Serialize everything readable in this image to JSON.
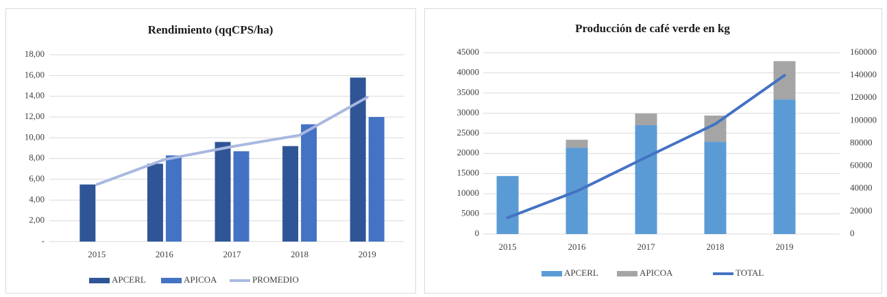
{
  "chart_data": [
    {
      "type": "bar",
      "title": "Rendimiento  (qqCPS/ha)",
      "categories": [
        "2015",
        "2016",
        "2017",
        "2018",
        "2019"
      ],
      "series": [
        {
          "name": "APCERL",
          "color": "#2f5597",
          "type": "bar",
          "values": [
            5.5,
            7.5,
            9.6,
            9.2,
            15.8
          ]
        },
        {
          "name": "APICOA",
          "color": "#4472c4",
          "type": "bar",
          "values": [
            null,
            8.3,
            8.7,
            11.3,
            12.0
          ]
        },
        {
          "name": "PROMEDIO",
          "color": "#a9b8e0",
          "type": "line",
          "values": [
            5.5,
            7.9,
            9.15,
            10.25,
            13.9
          ]
        }
      ],
      "ylim": [
        0,
        18
      ],
      "yticks": [
        {
          "value": 0,
          "label": "-"
        },
        {
          "value": 2,
          "label": "2,00"
        },
        {
          "value": 4,
          "label": "4,00"
        },
        {
          "value": 6,
          "label": "6,00"
        },
        {
          "value": 8,
          "label": "8,00"
        },
        {
          "value": 10,
          "label": "10,00"
        },
        {
          "value": 12,
          "label": "12,00"
        },
        {
          "value": 14,
          "label": "14,00"
        },
        {
          "value": 16,
          "label": "16,00"
        },
        {
          "value": 18,
          "label": "18,00"
        }
      ],
      "grid": true
    },
    {
      "type": "bar",
      "stacked": true,
      "title": "Producción de café verde en kg",
      "categories": [
        "2015",
        "2016",
        "2017",
        "2018",
        "2019"
      ],
      "series": [
        {
          "name": "APCERL",
          "color": "#5b9bd5",
          "type": "bar",
          "values": [
            14400,
            21400,
            27000,
            22900,
            33400
          ]
        },
        {
          "name": "APICOA",
          "color": "#a5a5a5",
          "type": "bar",
          "values": [
            0,
            2000,
            2900,
            6500,
            9500
          ]
        },
        {
          "name": "TOTAL",
          "color": "#4472c4",
          "type": "line",
          "axis": "y2",
          "values": [
            14400,
            37800,
            67700,
            97100,
            140000
          ]
        }
      ],
      "ylim": [
        0,
        45000
      ],
      "yticks": [
        0,
        5000,
        10000,
        15000,
        20000,
        25000,
        30000,
        35000,
        40000,
        45000
      ],
      "y2lim": [
        0,
        160000
      ],
      "y2ticks": [
        0,
        20000,
        40000,
        60000,
        80000,
        100000,
        120000,
        140000,
        160000
      ],
      "grid": true
    }
  ]
}
